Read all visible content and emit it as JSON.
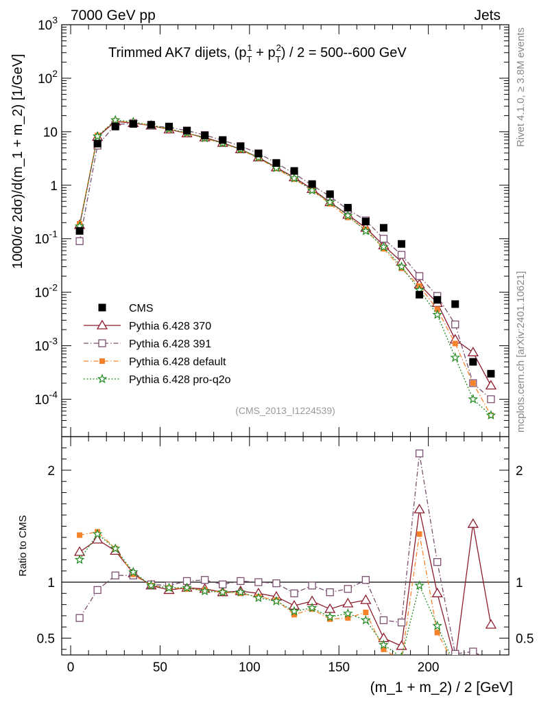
{
  "header": {
    "left": "7000 GeV pp",
    "right": "Jets"
  },
  "side_labels": {
    "rivet": "Rivet 4.1.0, ≥ 3.8M events",
    "mcplots": "mcplots.cern.ch [arXiv:2401.10621]"
  },
  "chart_data": {
    "type": "line",
    "title": "Trimmed AK7 dijets, (p_T^1 + p_T^2) / 2 = 500--600 GeV",
    "title_parts": {
      "main": "Trimmed AK7 dijets, (p",
      "sub": "T",
      "sup1": "1",
      "plus": " + p",
      "sup2": "2",
      "tail": ") / 2 = 500--600 GeV"
    },
    "watermark": "(CMS_2013_I1224539)",
    "xlabel": "(m_1 + m_2) / 2 [GeV]",
    "ylabel": "1000/σ  2dσ)/d(m_1 + m_2) [1/GeV]",
    "ratio_ylabel": "Ratio to CMS",
    "xlim": [
      -5,
      245
    ],
    "ylim": [
      2e-05,
      1000
    ],
    "ratio_ylim": [
      0.35,
      2.3
    ],
    "y_scale": "log",
    "x_ticks": [
      "0",
      "50",
      "100",
      "150",
      "200"
    ],
    "y_ticks": [
      "10^3",
      "10^2",
      "10",
      "1",
      "10^-1",
      "10^-2",
      "10^-3",
      "10^-4"
    ],
    "ratio_ticks": [
      "2",
      "1",
      "0.5"
    ],
    "legend_position": "lower-left",
    "x": [
      5,
      15,
      25,
      35,
      45,
      55,
      65,
      75,
      85,
      95,
      105,
      115,
      125,
      135,
      145,
      155,
      165,
      175,
      185,
      195,
      205,
      215,
      225,
      235
    ],
    "series": [
      {
        "name": "CMS",
        "color": "#000000",
        "marker": "square-filled",
        "dash": "none",
        "values": [
          0.14,
          6.0,
          12.5,
          14.0,
          13.5,
          12.5,
          10.5,
          8.5,
          7.0,
          5.3,
          3.9,
          2.6,
          1.85,
          1.05,
          0.68,
          0.38,
          0.21,
          0.16,
          0.08,
          0.009,
          0.0072,
          0.006,
          0.0005,
          0.0003
        ]
      },
      {
        "name": "Pythia 6.428 370",
        "color": "#8b1a2b",
        "marker": "triangle-open",
        "dash": "none",
        "values": [
          0.18,
          8.0,
          15.5,
          14.5,
          13.0,
          11.0,
          9.3,
          7.8,
          6.2,
          4.7,
          3.3,
          2.15,
          1.4,
          0.85,
          0.48,
          0.28,
          0.16,
          0.075,
          0.037,
          0.014,
          0.0063,
          0.0013,
          0.00075,
          0.00018
        ],
        "ratio": [
          1.27,
          1.38,
          1.28,
          1.08,
          0.97,
          0.93,
          0.95,
          0.94,
          0.91,
          0.92,
          0.9,
          0.87,
          0.79,
          0.83,
          0.76,
          0.81,
          0.84,
          0.5,
          0.43,
          1.65,
          0.9,
          0.3,
          1.52,
          0.62
        ]
      },
      {
        "name": "Pythia 6.428 391",
        "color": "#7a4e6e",
        "marker": "square-open",
        "dash": "dash-dot",
        "values": [
          0.09,
          5.5,
          13.5,
          14.5,
          13.0,
          12.0,
          10.5,
          8.7,
          6.9,
          5.4,
          3.95,
          2.6,
          1.65,
          1.0,
          0.62,
          0.35,
          0.22,
          0.1,
          0.05,
          0.02,
          0.0085,
          0.0025,
          0.0002,
          0.0001
        ],
        "ratio": [
          0.68,
          0.93,
          1.06,
          1.06,
          0.98,
          0.97,
          1.01,
          1.02,
          0.98,
          1.01,
          1.0,
          0.99,
          0.9,
          0.97,
          0.91,
          0.94,
          1.02,
          0.66,
          0.64,
          2.15,
          1.18,
          0.36,
          0.38,
          0.3
        ]
      },
      {
        "name": "Pythia 6.428 default",
        "color": "#f5822a",
        "marker": "square-filled",
        "dash": "dash-dot",
        "values": [
          0.19,
          8.5,
          16.0,
          14.8,
          13.0,
          11.1,
          9.4,
          7.5,
          6.1,
          4.6,
          3.2,
          2.05,
          1.3,
          0.8,
          0.45,
          0.25,
          0.15,
          0.065,
          0.028,
          0.013,
          0.0048,
          0.0011,
          0.0002,
          5e-05
        ],
        "ratio": [
          1.42,
          1.45,
          1.3,
          1.07,
          0.97,
          0.95,
          0.94,
          0.93,
          0.91,
          0.9,
          0.87,
          0.84,
          0.71,
          0.76,
          0.67,
          0.68,
          0.73,
          0.4,
          0.3,
          1.43,
          0.55,
          0.25,
          0.2,
          0.2
        ]
      },
      {
        "name": "Pythia 6.428 pro-q2o",
        "color": "#1f8a1f",
        "marker": "star",
        "dash": "dotted",
        "values": [
          0.17,
          8.2,
          16.5,
          15.2,
          13.2,
          11.3,
          9.5,
          7.6,
          6.1,
          4.7,
          3.3,
          2.1,
          1.35,
          0.8,
          0.48,
          0.27,
          0.14,
          0.07,
          0.03,
          0.011,
          0.0038,
          0.0006,
          0.0001,
          5e-05
        ],
        "ratio": [
          1.2,
          1.43,
          1.3,
          1.09,
          0.97,
          0.95,
          0.95,
          0.92,
          0.91,
          0.91,
          0.86,
          0.83,
          0.74,
          0.77,
          0.69,
          0.72,
          0.66,
          0.44,
          0.33,
          0.97,
          0.61,
          0.25,
          0.2,
          0.2
        ]
      }
    ]
  }
}
